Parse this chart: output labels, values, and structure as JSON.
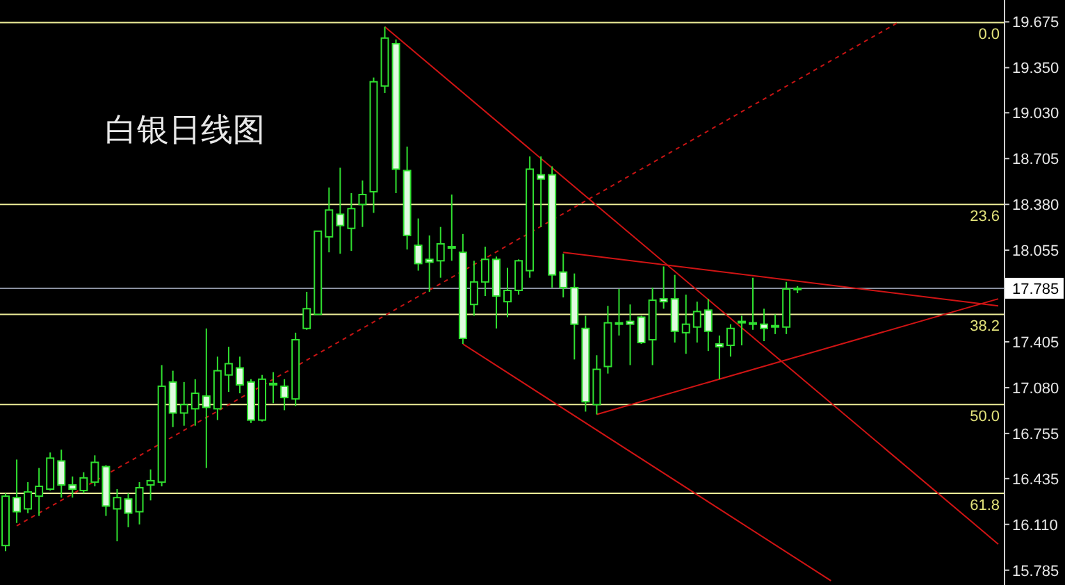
{
  "chart_data": {
    "type": "candlestick",
    "title": "白银日线图",
    "categories": [
      null,
      null,
      null,
      null,
      null,
      null,
      null,
      null,
      null,
      null,
      null,
      null,
      null,
      null,
      null,
      null,
      null,
      null,
      null,
      null,
      null,
      null,
      null,
      null,
      null,
      null,
      null,
      null,
      null,
      null,
      null,
      null,
      null,
      null,
      null,
      null,
      null,
      null,
      null,
      null,
      null,
      null,
      null,
      null,
      null,
      null,
      null,
      null,
      null,
      null,
      null,
      null,
      null,
      null,
      null,
      null,
      null,
      null,
      null,
      null,
      null,
      null,
      null,
      null,
      null,
      null,
      null,
      null,
      null,
      null,
      null,
      null,
      null,
      null,
      null,
      null,
      null,
      null,
      null,
      null,
      null,
      null,
      null,
      null,
      null,
      null,
      null,
      null,
      null,
      null
    ],
    "ohlc": [
      [
        15.96,
        16.33,
        15.92,
        16.31
      ],
      [
        16.3,
        16.57,
        16.12,
        16.2
      ],
      [
        16.22,
        16.41,
        16.19,
        16.34
      ],
      [
        16.31,
        16.51,
        16.17,
        16.38
      ],
      [
        16.36,
        16.62,
        16.35,
        16.58
      ],
      [
        16.56,
        16.64,
        16.3,
        16.39
      ],
      [
        16.39,
        16.45,
        16.3,
        16.36
      ],
      [
        16.35,
        16.48,
        16.33,
        16.44
      ],
      [
        16.41,
        16.6,
        16.38,
        16.55
      ],
      [
        16.52,
        16.53,
        16.17,
        16.24
      ],
      [
        16.22,
        16.36,
        15.99,
        16.3
      ],
      [
        16.29,
        16.33,
        16.09,
        16.19
      ],
      [
        16.2,
        16.41,
        16.11,
        16.37
      ],
      [
        16.39,
        16.5,
        16.28,
        16.42
      ],
      [
        16.41,
        17.24,
        16.38,
        17.09
      ],
      [
        17.12,
        17.2,
        16.8,
        16.9
      ],
      [
        16.9,
        17.12,
        16.81,
        16.96
      ],
      [
        16.93,
        17.14,
        16.81,
        17.04
      ],
      [
        17.02,
        17.5,
        16.51,
        16.94
      ],
      [
        16.93,
        17.3,
        16.85,
        17.2
      ],
      [
        17.17,
        17.37,
        17.05,
        17.25
      ],
      [
        17.22,
        17.3,
        17.04,
        17.1
      ],
      [
        17.12,
        17.14,
        16.83,
        16.85
      ],
      [
        16.85,
        17.17,
        16.84,
        17.14
      ],
      [
        17.1,
        17.19,
        16.97,
        17.11
      ],
      [
        17.09,
        17.14,
        16.92,
        17.01
      ],
      [
        17.0,
        17.47,
        16.95,
        17.42
      ],
      [
        17.5,
        17.76,
        17.49,
        17.64
      ],
      [
        17.6,
        18.19,
        17.6,
        18.19
      ],
      [
        18.15,
        18.5,
        18.04,
        18.34
      ],
      [
        18.31,
        18.64,
        18.03,
        18.23
      ],
      [
        18.21,
        18.46,
        18.05,
        18.35
      ],
      [
        18.38,
        18.55,
        18.22,
        18.45
      ],
      [
        18.47,
        19.28,
        18.32,
        19.25
      ],
      [
        19.22,
        19.64,
        19.17,
        19.56
      ],
      [
        19.52,
        19.55,
        18.46,
        18.63
      ],
      [
        18.62,
        18.79,
        18.06,
        18.16
      ],
      [
        18.09,
        18.28,
        17.91,
        17.96
      ],
      [
        17.99,
        18.16,
        17.76,
        17.97
      ],
      [
        17.98,
        18.22,
        17.86,
        18.1
      ],
      [
        18.08,
        18.45,
        17.98,
        18.07
      ],
      [
        18.04,
        18.17,
        17.39,
        17.43
      ],
      [
        17.67,
        17.98,
        17.59,
        17.83
      ],
      [
        17.83,
        18.08,
        17.73,
        17.99
      ],
      [
        17.99,
        18.01,
        17.5,
        17.73
      ],
      [
        17.69,
        17.93,
        17.58,
        17.77
      ],
      [
        17.77,
        17.99,
        17.74,
        17.98
      ],
      [
        17.91,
        18.72,
        17.86,
        18.63
      ],
      [
        18.59,
        18.72,
        18.22,
        18.56
      ],
      [
        18.59,
        18.65,
        17.79,
        17.88
      ],
      [
        17.9,
        18.03,
        17.72,
        17.79
      ],
      [
        17.79,
        17.89,
        17.28,
        17.53
      ],
      [
        17.5,
        17.59,
        16.91,
        16.98
      ],
      [
        16.96,
        17.31,
        16.89,
        17.21
      ],
      [
        17.23,
        17.66,
        17.18,
        17.54
      ],
      [
        17.54,
        17.78,
        17.45,
        17.53
      ],
      [
        17.55,
        17.67,
        17.24,
        17.53
      ],
      [
        17.58,
        17.59,
        17.39,
        17.4
      ],
      [
        17.42,
        17.79,
        17.24,
        17.7
      ],
      [
        17.71,
        17.94,
        17.64,
        17.69
      ],
      [
        17.71,
        17.88,
        17.4,
        17.48
      ],
      [
        17.47,
        17.74,
        17.32,
        17.53
      ],
      [
        17.51,
        17.69,
        17.4,
        17.62
      ],
      [
        17.63,
        17.71,
        17.34,
        17.48
      ],
      [
        17.39,
        17.45,
        17.14,
        17.37
      ],
      [
        17.38,
        17.53,
        17.3,
        17.5
      ],
      [
        17.55,
        17.59,
        17.38,
        17.54
      ],
      [
        17.53,
        17.86,
        17.49,
        17.54
      ],
      [
        17.53,
        17.64,
        17.41,
        17.5
      ],
      [
        17.52,
        17.6,
        17.46,
        17.51
      ],
      [
        17.51,
        17.83,
        17.46,
        17.78
      ],
      [
        17.78,
        17.8,
        17.75,
        17.785
      ],
      null,
      null,
      null,
      null,
      null,
      null,
      null,
      null,
      null,
      null,
      null,
      null,
      null,
      null,
      null,
      null,
      null,
      null
    ],
    "color": "#30e030",
    "series": [
      {
        "type": "line",
        "color": "#c81414",
        "line_style": "dotted",
        "values": [
          null,
          16.1,
          null,
          null,
          null,
          null,
          null,
          null,
          null,
          null,
          null,
          null,
          null,
          null,
          null,
          null,
          null,
          null,
          null,
          null,
          null,
          null,
          null,
          null,
          null,
          null,
          null,
          null,
          null,
          null,
          null,
          null,
          null,
          null,
          null,
          null,
          null,
          null,
          null,
          null,
          null,
          null,
          null,
          null,
          null,
          null,
          null,
          null,
          null,
          null,
          null,
          null,
          null,
          null,
          null,
          null,
          null,
          null,
          null,
          null,
          null,
          null,
          null,
          null,
          null,
          null,
          null,
          null,
          null,
          null,
          null,
          null,
          null,
          null,
          null,
          null,
          null,
          null,
          null,
          null,
          19.67,
          null,
          null,
          null,
          null,
          null,
          null,
          null,
          null,
          null
        ]
      },
      {
        "type": "line",
        "color": "#d01414",
        "values": [
          null,
          null,
          null,
          null,
          null,
          null,
          null,
          null,
          null,
          null,
          null,
          null,
          null,
          null,
          null,
          null,
          null,
          null,
          null,
          null,
          null,
          null,
          null,
          null,
          null,
          null,
          null,
          null,
          null,
          null,
          null,
          null,
          null,
          null,
          19.64,
          null,
          null,
          null,
          null,
          null,
          null,
          null,
          null,
          null,
          null,
          null,
          null,
          null,
          null,
          null,
          null,
          null,
          null,
          null,
          null,
          null,
          null,
          null,
          null,
          null,
          null,
          null,
          null,
          null,
          null,
          null,
          null,
          null,
          null,
          null,
          null,
          null,
          null,
          null,
          null,
          null,
          null,
          null,
          null,
          null,
          null,
          null,
          null,
          null,
          null,
          null,
          null,
          null,
          null,
          15.97
        ]
      },
      {
        "type": "line",
        "color": "#d01414",
        "values": [
          null,
          null,
          null,
          null,
          null,
          null,
          null,
          null,
          null,
          null,
          null,
          null,
          null,
          null,
          null,
          null,
          null,
          null,
          null,
          null,
          null,
          null,
          null,
          null,
          null,
          null,
          null,
          null,
          null,
          null,
          null,
          null,
          null,
          null,
          null,
          null,
          null,
          null,
          null,
          null,
          null,
          17.39,
          null,
          null,
          null,
          null,
          null,
          null,
          null,
          null,
          null,
          null,
          null,
          null,
          null,
          null,
          null,
          null,
          null,
          null,
          null,
          null,
          null,
          null,
          null,
          null,
          null,
          null,
          null,
          null,
          null,
          null,
          null,
          null,
          15.71,
          null,
          null,
          null,
          null,
          null,
          null,
          null,
          null,
          null,
          null,
          null,
          null,
          null,
          null,
          null
        ]
      },
      {
        "type": "line",
        "color": "#d01414",
        "values": [
          null,
          null,
          null,
          null,
          null,
          null,
          null,
          null,
          null,
          null,
          null,
          null,
          null,
          null,
          null,
          null,
          null,
          null,
          null,
          null,
          null,
          null,
          null,
          null,
          null,
          null,
          null,
          null,
          null,
          null,
          null,
          null,
          null,
          null,
          null,
          null,
          null,
          null,
          null,
          null,
          null,
          null,
          null,
          null,
          null,
          null,
          null,
          null,
          null,
          null,
          18.04,
          null,
          null,
          null,
          null,
          null,
          null,
          null,
          null,
          null,
          null,
          null,
          null,
          null,
          null,
          null,
          null,
          null,
          null,
          null,
          null,
          null,
          null,
          null,
          null,
          null,
          null,
          null,
          null,
          null,
          null,
          null,
          null,
          null,
          null,
          null,
          null,
          null,
          null,
          17.66
        ]
      },
      {
        "type": "line",
        "color": "#d01414",
        "values": [
          null,
          null,
          null,
          null,
          null,
          null,
          null,
          null,
          null,
          null,
          null,
          null,
          null,
          null,
          null,
          null,
          null,
          null,
          null,
          null,
          null,
          null,
          null,
          null,
          null,
          null,
          null,
          null,
          null,
          null,
          null,
          null,
          null,
          null,
          null,
          null,
          null,
          null,
          null,
          null,
          null,
          null,
          null,
          null,
          null,
          null,
          null,
          null,
          null,
          null,
          null,
          null,
          null,
          16.89,
          null,
          null,
          null,
          null,
          null,
          null,
          null,
          null,
          null,
          null,
          null,
          null,
          null,
          null,
          null,
          null,
          null,
          null,
          null,
          null,
          null,
          null,
          null,
          null,
          null,
          null,
          null,
          null,
          null,
          null,
          null,
          null,
          null,
          null,
          null,
          17.71
        ]
      }
    ],
    "ylim": [
      15.68,
      19.83
    ],
    "yticks": [
      19.675,
      {
        "value": 19.35,
        "label": "19.350"
      },
      {
        "value": 19.03,
        "label": "19.030"
      },
      18.705,
      {
        "value": 18.38,
        "label": "18.380"
      },
      18.055,
      17.785,
      17.405,
      {
        "value": 17.08,
        "label": "17.080"
      },
      16.755,
      16.435,
      {
        "value": 16.11,
        "label": "16.110"
      },
      15.785
    ],
    "tick_labels": "y",
    "ref_lines": [
      {
        "axis": "y",
        "value": 19.67,
        "color": "#eeee99"
      },
      {
        "axis": "y",
        "value": 18.38,
        "color": "#eeee99"
      },
      {
        "axis": "y",
        "value": 17.6,
        "color": "#eeee99"
      },
      {
        "axis": "y",
        "value": 16.96,
        "color": "#eeee99"
      },
      {
        "axis": "y",
        "value": 16.33,
        "color": "#eeee99"
      },
      {
        "axis": "y",
        "value": 17.785,
        "color": "#8a90a0"
      }
    ],
    "annotations": [
      {
        "text": "0.0",
        "y": 19.67
      },
      {
        "text": "23.6",
        "y": 18.38
      },
      {
        "text": "38.2",
        "y": 17.6
      },
      {
        "text": "50.0",
        "y": 16.96
      },
      {
        "text": "61.8",
        "y": 16.33
      }
    ]
  }
}
